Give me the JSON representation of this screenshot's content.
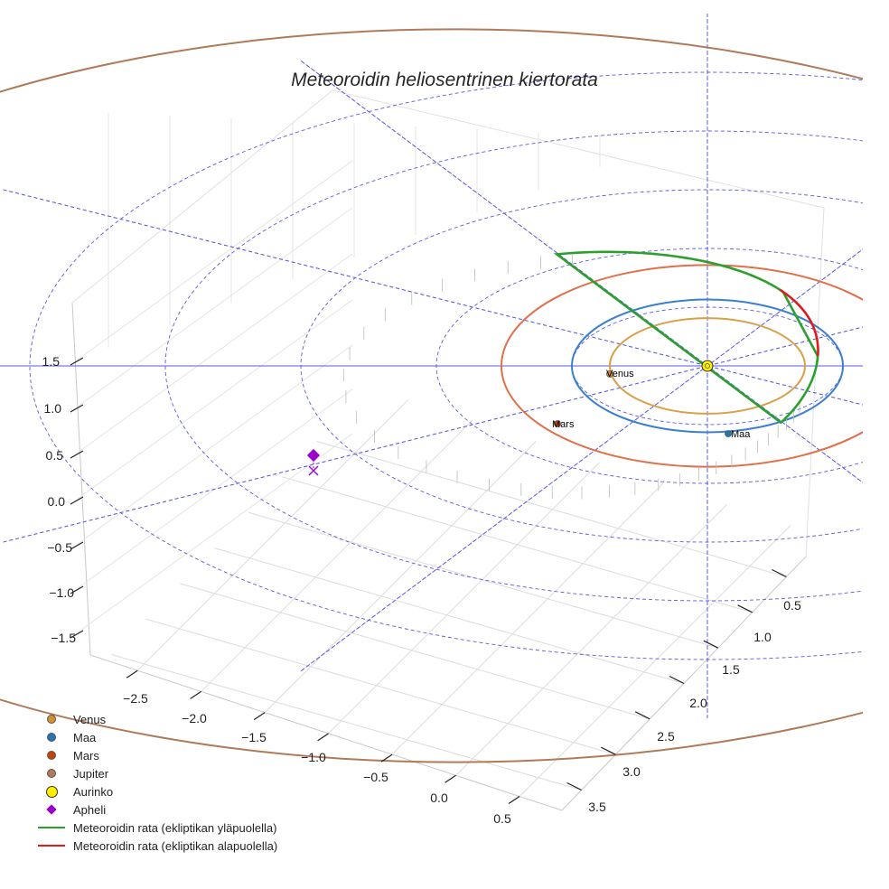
{
  "chart_data": {
    "type": "line",
    "projection": "3d",
    "title": "Meteoroidin heliosentrinen kiertorata",
    "xlabel": "",
    "ylabel": "",
    "zlabel": "",
    "x_ticks": [
      "−2.5",
      "−2.0",
      "−1.5",
      "−1.0",
      "−0.5",
      "0.0",
      "0.5"
    ],
    "y_ticks": [
      "0.5",
      "1.0",
      "1.5",
      "2.0",
      "2.5",
      "3.0",
      "3.5"
    ],
    "z_ticks": [
      "1.5",
      "1.0",
      "0.5",
      "0.0",
      "−0.5",
      "−1.0",
      "−1.5"
    ],
    "xlim": [
      -2.9,
      0.6
    ],
    "ylim": [
      0.2,
      3.7
    ],
    "zlim": [
      -1.7,
      1.9
    ],
    "planets": [
      {
        "name": "Venus",
        "label": "Venus",
        "color": "#d4902c",
        "orbit_radius_au": 0.72,
        "x": -0.72,
        "y": 0.05,
        "z": 0
      },
      {
        "name": "Maa",
        "label": "Maa",
        "color": "#1f77b4",
        "orbit_radius_au": 1.0,
        "x": 0.2,
        "y": 0.98,
        "z": 0
      },
      {
        "name": "Mars",
        "label": "Mars",
        "color": "#c1440e",
        "orbit_radius_au": 1.52,
        "x": -1.4,
        "y": 0.7,
        "z": 0
      },
      {
        "name": "Jupiter",
        "label": "",
        "color": "#b07a5a",
        "orbit_radius_au": 5.2,
        "x": null,
        "y": null,
        "z": 0
      }
    ],
    "sun": {
      "name": "Aurinko",
      "color": "#ffee00",
      "x": 0,
      "y": 0,
      "z": 0
    },
    "aphelion": {
      "name": "Apheli",
      "color": "#9900cc",
      "x": -2.55,
      "y": 1.05,
      "z": 0.11
    },
    "meteoroid_orbit": {
      "perihelion_au": 0.85,
      "aphelion_au": 2.8,
      "inclination_deg": 3,
      "series": [
        {
          "name": "Meteoroidin rata (ekliptikan yläpuolella)",
          "color": "#2ca02c"
        },
        {
          "name": "Meteoroidin rata (ekliptikan alapuolella)",
          "color": "#e31a1c"
        }
      ]
    },
    "ecliptic_grid_radii_au": [
      1,
      2,
      3,
      4,
      5
    ]
  },
  "legend": {
    "items": [
      {
        "label": "Venus",
        "color": "#d4902c"
      },
      {
        "label": "Maa",
        "color": "#1f77b4"
      },
      {
        "label": "Mars",
        "color": "#c1440e"
      },
      {
        "label": "Jupiter",
        "color": "#b07a5a"
      },
      {
        "label": "Aurinko",
        "color": "#ffee00"
      },
      {
        "label": "Apheli",
        "color": "#9900cc"
      },
      {
        "label": "Meteoroidin rata (ekliptikan yläpuolella)",
        "color": "#2ca02c"
      },
      {
        "label": "Meteoroidin rata (ekliptikan alapuolella)",
        "color": "#e31a1c"
      }
    ]
  }
}
